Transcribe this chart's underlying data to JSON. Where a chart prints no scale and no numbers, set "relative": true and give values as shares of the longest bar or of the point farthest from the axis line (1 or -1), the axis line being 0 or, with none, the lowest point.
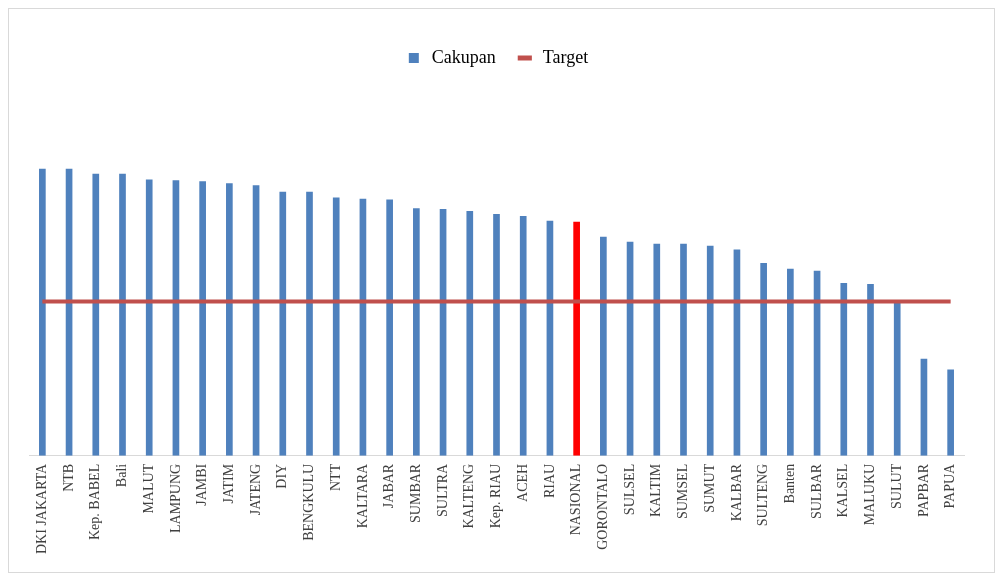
{
  "chart_data": {
    "type": "bar",
    "relative": true,
    "legend": "top",
    "grid": false,
    "categories": [
      "DKI JAKARTA",
      "NTB",
      "Kep. BABEL",
      "Bali",
      "MALUT",
      "LAMPUNG",
      "JAMBI",
      "JATIM",
      "JATENG",
      "DIY",
      "BENGKULU",
      "NTT",
      "KALTARA",
      "JABAR",
      "SUMBAR",
      "SULTRA",
      "KALTENG",
      "Kep. RIAU",
      "ACEH",
      "RIAU",
      "NASIONAL",
      "GORONTALO",
      "SULSEL",
      "KALTIM",
      "SUMSEL",
      "SUMUT",
      "KALBAR",
      "SULTENG",
      "Banten",
      "SULBAR",
      "KALSEL",
      "MALUKU",
      "SULUT",
      "PAPBAR",
      "PAPUA"
    ],
    "series": [
      {
        "name": "Cakupan",
        "color": "#4f81bd",
        "colors": [
          "#4f81bd",
          "#4f81bd",
          "#4f81bd",
          "#4f81bd",
          "#4f81bd",
          "#4f81bd",
          "#4f81bd",
          "#4f81bd",
          "#4f81bd",
          "#4f81bd",
          "#4f81bd",
          "#4f81bd",
          "#4f81bd",
          "#4f81bd",
          "#4f81bd",
          "#4f81bd",
          "#4f81bd",
          "#4f81bd",
          "#4f81bd",
          "#4f81bd",
          "#ff0000",
          "#4f81bd",
          "#4f81bd",
          "#4f81bd",
          "#4f81bd",
          "#4f81bd",
          "#4f81bd",
          "#4f81bd",
          "#4f81bd",
          "#4f81bd",
          "#4f81bd",
          "#4f81bd",
          "#4f81bd",
          "#4f81bd",
          "#4f81bd"
        ],
        "values": [
          1.0,
          1.0,
          0.983,
          0.983,
          0.963,
          0.96,
          0.957,
          0.95,
          0.943,
          0.92,
          0.92,
          0.9,
          0.896,
          0.893,
          0.863,
          0.86,
          0.853,
          0.843,
          0.836,
          0.819,
          0.816,
          0.763,
          0.746,
          0.739,
          0.739,
          0.732,
          0.719,
          0.672,
          0.652,
          0.645,
          0.602,
          0.599,
          0.542,
          0.338,
          0.301
        ]
      },
      {
        "name": "Target",
        "type": "line",
        "color": "#c0504d",
        "values": [
          0.538,
          0.538,
          0.538,
          0.538,
          0.538,
          0.538,
          0.538,
          0.538,
          0.538,
          0.538,
          0.538,
          0.538,
          0.538,
          0.538,
          0.538,
          0.538,
          0.538,
          0.538,
          0.538,
          0.538,
          0.538,
          0.538,
          0.538,
          0.538,
          0.538,
          0.538,
          0.538,
          0.538,
          0.538,
          0.538,
          0.538,
          0.538,
          0.538,
          0.538,
          0.538
        ]
      }
    ]
  }
}
